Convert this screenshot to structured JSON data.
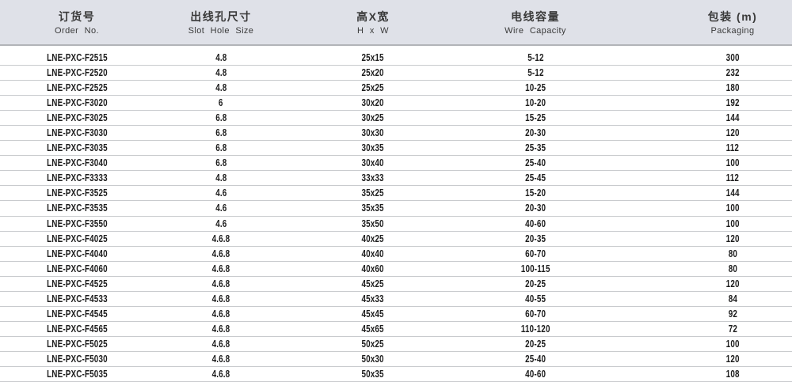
{
  "table": {
    "columns": [
      {
        "zh": "订货号",
        "en": "Order No."
      },
      {
        "zh": "出线孔尺寸",
        "en": "Slot Hole Size"
      },
      {
        "zh": "高X宽",
        "en": "H x W"
      },
      {
        "zh": "电线容量",
        "en": "Wire Capacity"
      },
      {
        "zh": "包装 (m)",
        "en": "Packaging"
      }
    ],
    "rows": [
      [
        "LNE-PXC-F2515",
        "4.8",
        "25x15",
        "5-12",
        "300"
      ],
      [
        "LNE-PXC-F2520",
        "4.8",
        "25x20",
        "5-12",
        "232"
      ],
      [
        "LNE-PXC-F2525",
        "4.8",
        "25x25",
        "10-25",
        "180"
      ],
      [
        "LNE-PXC-F3020",
        "6",
        "30x20",
        "10-20",
        "192"
      ],
      [
        "LNE-PXC-F3025",
        "6.8",
        "30x25",
        "15-25",
        "144"
      ],
      [
        "LNE-PXC-F3030",
        "6.8",
        "30x30",
        "20-30",
        "120"
      ],
      [
        "LNE-PXC-F3035",
        "6.8",
        "30x35",
        "25-35",
        "112"
      ],
      [
        "LNE-PXC-F3040",
        "6.8",
        "30x40",
        "25-40",
        "100"
      ],
      [
        "LNE-PXC-F3333",
        "4.8",
        "33x33",
        "25-45",
        "112"
      ],
      [
        "LNE-PXC-F3525",
        "4.6",
        "35x25",
        "15-20",
        "144"
      ],
      [
        "LNE-PXC-F3535",
        "4.6",
        "35x35",
        "20-30",
        "100"
      ],
      [
        "LNE-PXC-F3550",
        "4.6",
        "35x50",
        "40-60",
        "100"
      ],
      [
        "LNE-PXC-F4025",
        "4.6.8",
        "40x25",
        "20-35",
        "120"
      ],
      [
        "LNE-PXC-F4040",
        "4.6.8",
        "40x40",
        "60-70",
        "80"
      ],
      [
        "LNE-PXC-F4060",
        "4.6.8",
        "40x60",
        "100-115",
        "80"
      ],
      [
        "LNE-PXC-F4525",
        "4.6.8",
        "45x25",
        "20-25",
        "120"
      ],
      [
        "LNE-PXC-F4533",
        "4.6.8",
        "45x33",
        "40-55",
        "84"
      ],
      [
        "LNE-PXC-F4545",
        "4.6.8",
        "45x45",
        "60-70",
        "92"
      ],
      [
        "LNE-PXC-F4565",
        "4.6.8",
        "45x65",
        "110-120",
        "72"
      ],
      [
        "LNE-PXC-F5025",
        "4.6.8",
        "50x25",
        "20-25",
        "100"
      ],
      [
        "LNE-PXC-F5030",
        "4.6.8",
        "50x30",
        "25-40",
        "120"
      ],
      [
        "LNE-PXC-F5035",
        "4.6.8",
        "50x35",
        "40-60",
        "108"
      ]
    ]
  },
  "colors": {
    "header_bg": "#dfe1e8",
    "header_border": "#b2b4b8",
    "row_border": "#c9cbce",
    "data_text": "#1d1d1d"
  }
}
